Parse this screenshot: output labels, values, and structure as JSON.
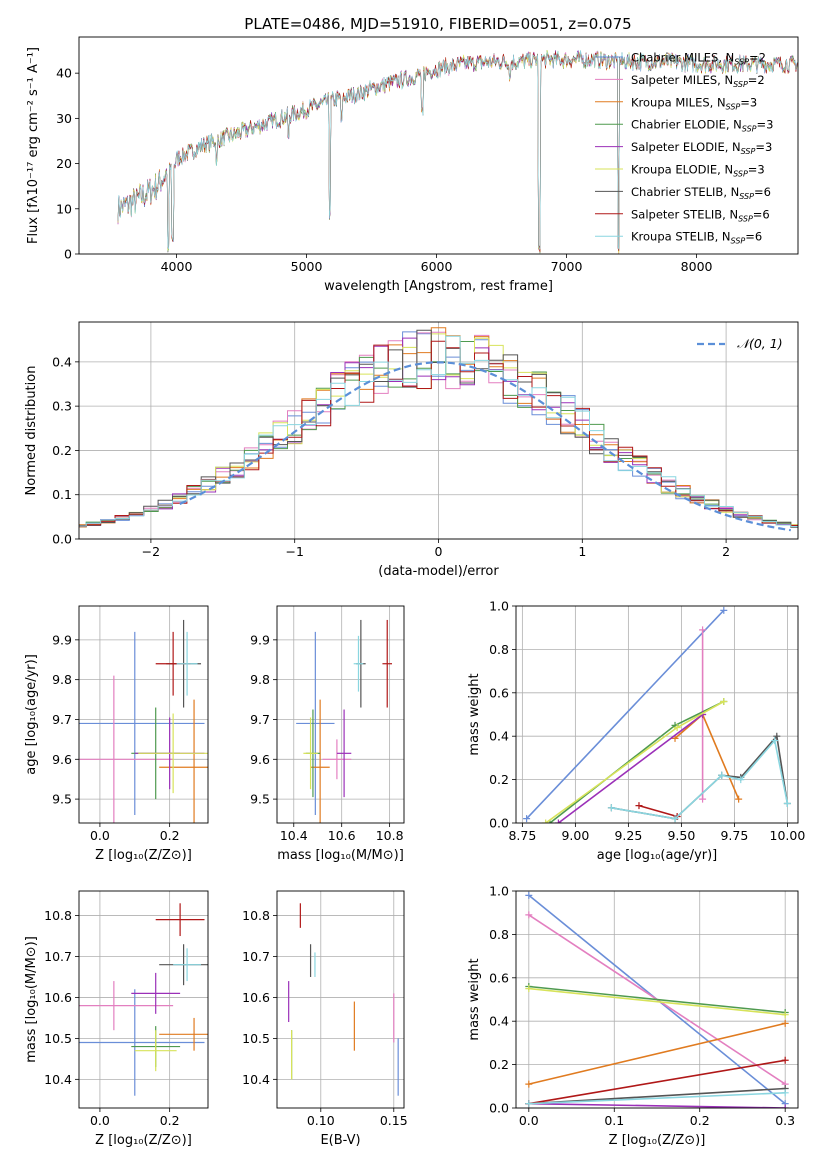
{
  "title": "PLATE=0486, MJD=51910, FIBERID=0051, z=0.075",
  "colors": [
    "#6a8ed8",
    "#e37fc0",
    "#e07b20",
    "#4f9a4f",
    "#9b30b8",
    "#d7e35a",
    "#555555",
    "#b01818",
    "#8ad6e0"
  ],
  "normal_color": "#5b8fd8",
  "chart_data": [
    {
      "id": "spectrum",
      "type": "line",
      "xlabel": "wavelength [Angstrom, rest frame]",
      "ylabel": "Flux [fλ10⁻¹⁷ erg cm⁻² s⁻¹ A⁻¹]",
      "xlim": [
        3250,
        8780
      ],
      "ylim": [
        0,
        48
      ],
      "xticks": [
        4000,
        5000,
        6000,
        7000,
        8000
      ],
      "yticks": [
        0,
        10,
        20,
        30,
        40
      ],
      "grid": false,
      "legend_position": "top-right",
      "legend": [
        "Chabrier MILES, N_SSP=2",
        "Salpeter MILES, N_SSP=2",
        "Kroupa MILES, N_SSP=3",
        "Chabrier ELODIE, N_SSP=3",
        "Salpeter ELODIE, N_SSP=3",
        "Kroupa ELODIE, N_SSP=3",
        "Chabrier STELIB, N_SSP=6",
        "Salpeter STELIB, N_SSP=6",
        "Kroupa STELIB, N_SSP=6"
      ],
      "continuum": {
        "x": [
          3550,
          3700,
          3850,
          4000,
          4200,
          4400,
          4600,
          4800,
          5000,
          5200,
          5400,
          5600,
          5800,
          6000,
          6200,
          6400,
          6600,
          6800,
          7000,
          7200,
          7400,
          7600,
          7800,
          8000,
          8200,
          8400,
          8600,
          8780
        ],
        "y": [
          10,
          12,
          15,
          21,
          24,
          26,
          28,
          30,
          32,
          34,
          35.5,
          37.5,
          39,
          41,
          42,
          42.5,
          42.5,
          43,
          43,
          43,
          42.5,
          42.5,
          42.5,
          42,
          42,
          42,
          42,
          42
        ]
      },
      "absorption_features": [
        {
          "x": 3935,
          "y": 0
        },
        {
          "x": 3970,
          "y": 2
        },
        {
          "x": 4310,
          "y": 20
        },
        {
          "x": 4861,
          "y": 25
        },
        {
          "x": 5178,
          "y": 8
        },
        {
          "x": 5270,
          "y": 28
        },
        {
          "x": 5890,
          "y": 30
        },
        {
          "x": 6563,
          "y": 38
        },
        {
          "x": 6790,
          "y": 0
        },
        {
          "x": 7400,
          "y": 0
        }
      ]
    },
    {
      "id": "residuals",
      "type": "histogram",
      "xlabel": "(data-model)/error",
      "ylabel": "Normed distribution",
      "xlim": [
        -2.5,
        2.5
      ],
      "ylim": [
        0,
        0.49
      ],
      "xticks": [
        -2,
        -1,
        0,
        1,
        2
      ],
      "yticks": [
        0.0,
        0.1,
        0.2,
        0.3,
        0.4
      ],
      "grid": true,
      "legend_position": "top-right",
      "legend": [
        "𝒩(0, 1)"
      ],
      "bin_width": 0.1
    },
    {
      "id": "age-vs-Z",
      "type": "scatter",
      "xlabel": "Z [log₁₀(Z/Z⊙)]",
      "ylabel": "age  [log₁₀(age/yr)]",
      "xlim": [
        -0.06,
        0.31
      ],
      "ylim": [
        9.44,
        9.985
      ],
      "xticks": [
        0.0,
        0.2
      ],
      "yticks": [
        9.5,
        9.6,
        9.7,
        9.8,
        9.9
      ],
      "grid": true,
      "points": [
        {
          "x": 0.1,
          "y": 9.69,
          "xerr": 0.2,
          "yerr": 0.23
        },
        {
          "x": 0.04,
          "y": 9.6,
          "xerr": 0.17,
          "yerr": 0.21
        },
        {
          "x": 0.27,
          "y": 9.58,
          "xerr": 0.1,
          "yerr": 0.17
        },
        {
          "x": 0.16,
          "y": 9.615,
          "xerr": 0.07,
          "yerr": 0.115
        },
        {
          "x": 0.2,
          "y": 9.615,
          "xerr": 0.1,
          "yerr": 0.09
        },
        {
          "x": 0.21,
          "y": 9.615,
          "xerr": 0.1,
          "yerr": 0.1
        },
        {
          "x": 0.24,
          "y": 9.84,
          "xerr": 0.05,
          "yerr": 0.11
        },
        {
          "x": 0.21,
          "y": 9.84,
          "xerr": 0.05,
          "yerr": 0.08
        },
        {
          "x": 0.25,
          "y": 9.84,
          "xerr": 0.03,
          "yerr": 0.08
        }
      ]
    },
    {
      "id": "age-vs-mass",
      "type": "scatter",
      "xlabel": "mass [log₁₀(M/M⊙)]",
      "ylabel": "",
      "xlim": [
        10.33,
        10.86
      ],
      "ylim": [
        9.44,
        9.985
      ],
      "xticks": [
        10.4,
        10.6,
        10.8
      ],
      "yticks": [
        9.5,
        9.6,
        9.7,
        9.8,
        9.9
      ],
      "grid": true,
      "points": [
        {
          "x": 10.49,
          "y": 9.69,
          "xerr": 0.08,
          "yerr": 0.23
        },
        {
          "x": 10.58,
          "y": 9.6,
          "xerr": 0.06,
          "yerr": 0.05
        },
        {
          "x": 10.51,
          "y": 9.58,
          "xerr": 0.04,
          "yerr": 0.17
        },
        {
          "x": 10.48,
          "y": 9.615,
          "xerr": 0.03,
          "yerr": 0.11
        },
        {
          "x": 10.61,
          "y": 9.615,
          "xerr": 0.03,
          "yerr": 0.11
        },
        {
          "x": 10.47,
          "y": 9.615,
          "xerr": 0.03,
          "yerr": 0.09
        },
        {
          "x": 10.68,
          "y": 9.84,
          "xerr": 0.02,
          "yerr": 0.11
        },
        {
          "x": 10.79,
          "y": 9.84,
          "xerr": 0.02,
          "yerr": 0.11
        },
        {
          "x": 10.67,
          "y": 9.84,
          "xerr": 0.02,
          "yerr": 0.07
        }
      ]
    },
    {
      "id": "weight-vs-age",
      "type": "line",
      "xlabel": "age  [log₁₀(age/yr)]",
      "ylabel": "mass weight",
      "xlim": [
        8.72,
        10.05
      ],
      "ylim": [
        0,
        1.0
      ],
      "xticks": [
        8.75,
        9.0,
        9.25,
        9.5,
        9.75,
        10.0
      ],
      "yticks": [
        0.0,
        0.2,
        0.4,
        0.6,
        0.8,
        1.0
      ],
      "grid": true,
      "series": [
        {
          "x": [
            8.77,
            9.7
          ],
          "y": [
            0.02,
            0.98
          ]
        },
        {
          "x": [
            9.6,
            9.6
          ],
          "y": [
            0.11,
            0.89
          ]
        },
        {
          "x": [
            9.47,
            9.6,
            9.77
          ],
          "y": [
            0.39,
            0.5,
            0.11
          ]
        },
        {
          "x": [
            8.88,
            9.47,
            9.7
          ],
          "y": [
            0.0,
            0.45,
            0.56
          ]
        },
        {
          "x": [
            8.92,
            9.6
          ],
          "y": [
            0.0,
            0.5
          ]
        },
        {
          "x": [
            8.86,
            9.48,
            9.7
          ],
          "y": [
            0.0,
            0.44,
            0.56
          ]
        },
        {
          "x": [
            9.17,
            9.47,
            9.69,
            9.78,
            9.95,
            10.0
          ],
          "y": [
            0.07,
            0.02,
            0.22,
            0.21,
            0.4,
            0.09
          ]
        },
        {
          "x": [
            9.3,
            9.48
          ],
          "y": [
            0.08,
            0.03
          ]
        },
        {
          "x": [
            9.17,
            9.47,
            9.69,
            9.78,
            9.94,
            10.0
          ],
          "y": [
            0.07,
            0.02,
            0.22,
            0.2,
            0.38,
            0.09
          ]
        }
      ]
    },
    {
      "id": "mass-vs-Z",
      "type": "scatter",
      "xlabel": "Z [log₁₀(Z/Z⊙)]",
      "ylabel": "mass [log₁₀(M/M⊙)]",
      "xlim": [
        -0.06,
        0.31
      ],
      "ylim": [
        10.33,
        10.86
      ],
      "xticks": [
        0.0,
        0.2
      ],
      "yticks": [
        10.4,
        10.5,
        10.6,
        10.7,
        10.8
      ],
      "grid": true,
      "points": [
        {
          "x": 0.1,
          "y": 10.49,
          "xerr": 0.2,
          "yerr": 0.13
        },
        {
          "x": 0.04,
          "y": 10.58,
          "xerr": 0.17,
          "yerr": 0.06
        },
        {
          "x": 0.27,
          "y": 10.51,
          "xerr": 0.1,
          "yerr": 0.04
        },
        {
          "x": 0.16,
          "y": 10.48,
          "xerr": 0.07,
          "yerr": 0.05
        },
        {
          "x": 0.16,
          "y": 10.61,
          "xerr": 0.07,
          "yerr": 0.05
        },
        {
          "x": 0.16,
          "y": 10.47,
          "xerr": 0.06,
          "yerr": 0.05
        },
        {
          "x": 0.24,
          "y": 10.68,
          "xerr": 0.07,
          "yerr": 0.05
        },
        {
          "x": 0.23,
          "y": 10.79,
          "xerr": 0.07,
          "yerr": 0.04
        },
        {
          "x": 0.25,
          "y": 10.68,
          "xerr": 0.04,
          "yerr": 0.04
        }
      ]
    },
    {
      "id": "mass-vs-ebv",
      "type": "scatter",
      "xlabel": "E(B-V)",
      "ylabel": "",
      "xlim": [
        0.07,
        0.157
      ],
      "ylim": [
        10.33,
        10.86
      ],
      "xticks": [
        0.1,
        0.15
      ],
      "yticks": [
        10.4,
        10.5,
        10.6,
        10.7,
        10.8
      ],
      "grid": true,
      "points": [
        {
          "x": 0.153,
          "y": 10.43,
          "xerr": 0.0,
          "yerr": 0.07
        },
        {
          "x": 0.15,
          "y": 10.55,
          "xerr": 0.0,
          "yerr": 0.06
        },
        {
          "x": 0.123,
          "y": 10.53,
          "xerr": 0.0,
          "yerr": 0.06
        },
        {
          "x": 0.08,
          "y": 10.46,
          "xerr": 0.0,
          "yerr": 0.06
        },
        {
          "x": 0.078,
          "y": 10.59,
          "xerr": 0.0,
          "yerr": 0.05
        },
        {
          "x": 0.08,
          "y": 10.46,
          "xerr": 0.0,
          "yerr": 0.06
        },
        {
          "x": 0.093,
          "y": 10.69,
          "xerr": 0.0,
          "yerr": 0.04
        },
        {
          "x": 0.086,
          "y": 10.8,
          "xerr": 0.0,
          "yerr": 0.03
        },
        {
          "x": 0.096,
          "y": 10.68,
          "xerr": 0.0,
          "yerr": 0.03
        }
      ]
    },
    {
      "id": "weight-vs-Z",
      "type": "line",
      "xlabel": "Z [log₁₀(Z/Z⊙)]",
      "ylabel": "mass weight",
      "xlim": [
        -0.015,
        0.315
      ],
      "ylim": [
        0,
        1.0
      ],
      "xticks": [
        0.0,
        0.1,
        0.2,
        0.3
      ],
      "yticks": [
        0.0,
        0.2,
        0.4,
        0.6,
        0.8,
        1.0
      ],
      "grid": true,
      "series": [
        {
          "x": [
            0.0,
            0.3
          ],
          "y": [
            0.98,
            0.02
          ]
        },
        {
          "x": [
            0.0,
            0.3
          ],
          "y": [
            0.89,
            0.11
          ]
        },
        {
          "x": [
            0.0,
            0.3
          ],
          "y": [
            0.11,
            0.39
          ]
        },
        {
          "x": [
            0.0,
            0.3
          ],
          "y": [
            0.56,
            0.44
          ]
        },
        {
          "x": [
            0.0,
            0.3
          ],
          "y": [
            0.02,
            0.0
          ]
        },
        {
          "x": [
            0.0,
            0.3
          ],
          "y": [
            0.55,
            0.43
          ]
        },
        {
          "x": [
            0.0,
            0.3
          ],
          "y": [
            0.02,
            0.09
          ]
        },
        {
          "x": [
            0.0,
            0.3
          ],
          "y": [
            0.02,
            0.22
          ]
        },
        {
          "x": [
            0.0,
            0.3
          ],
          "y": [
            0.02,
            0.07
          ]
        }
      ]
    }
  ]
}
